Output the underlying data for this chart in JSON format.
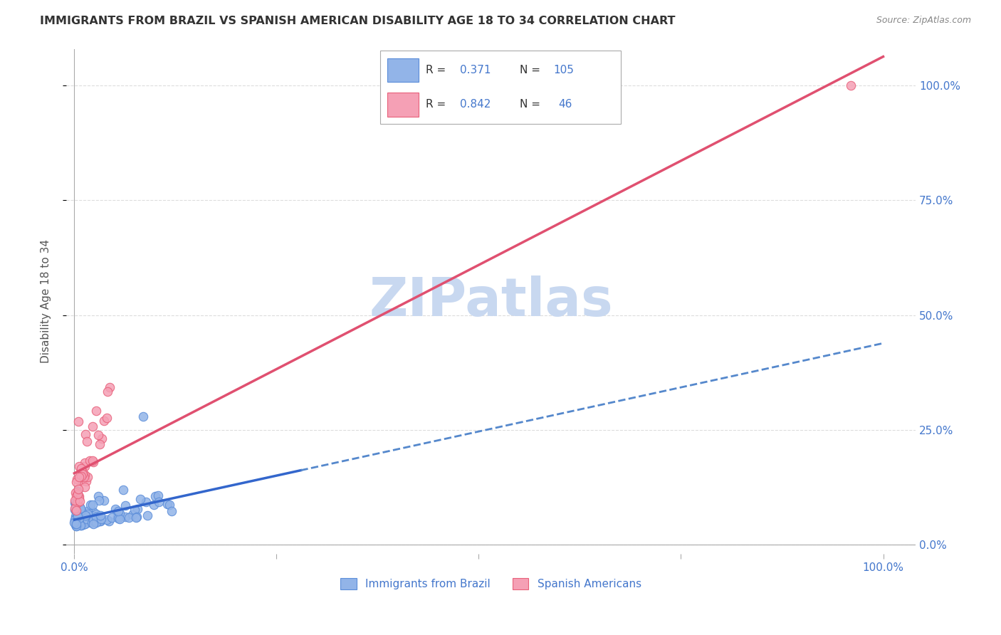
{
  "title": "IMMIGRANTS FROM BRAZIL VS SPANISH AMERICAN DISABILITY AGE 18 TO 34 CORRELATION CHART",
  "source": "Source: ZipAtlas.com",
  "ylabel": "Disability Age 18 to 34",
  "ytick_labels": [
    "0.0%",
    "25.0%",
    "50.0%",
    "75.0%",
    "100.0%"
  ],
  "ytick_positions": [
    0,
    0.25,
    0.5,
    0.75,
    1.0
  ],
  "brazil_R": 0.371,
  "brazil_N": 105,
  "spanish_R": 0.842,
  "spanish_N": 46,
  "brazil_color": "#92b4e8",
  "brazil_edge": "#5b8dd9",
  "spanish_color": "#f5a0b5",
  "spanish_edge": "#e8607a",
  "trend_blue_solid": "#3366cc",
  "trend_blue_dashed": "#5588cc",
  "trend_pink": "#e05070",
  "watermark_color": "#c8d8f0",
  "legend_label_brazil": "Immigrants from Brazil",
  "legend_label_spanish": "Spanish Americans",
  "background_color": "#ffffff",
  "grid_color": "#dddddd",
  "title_color": "#333333",
  "axis_label_color": "#4477cc"
}
